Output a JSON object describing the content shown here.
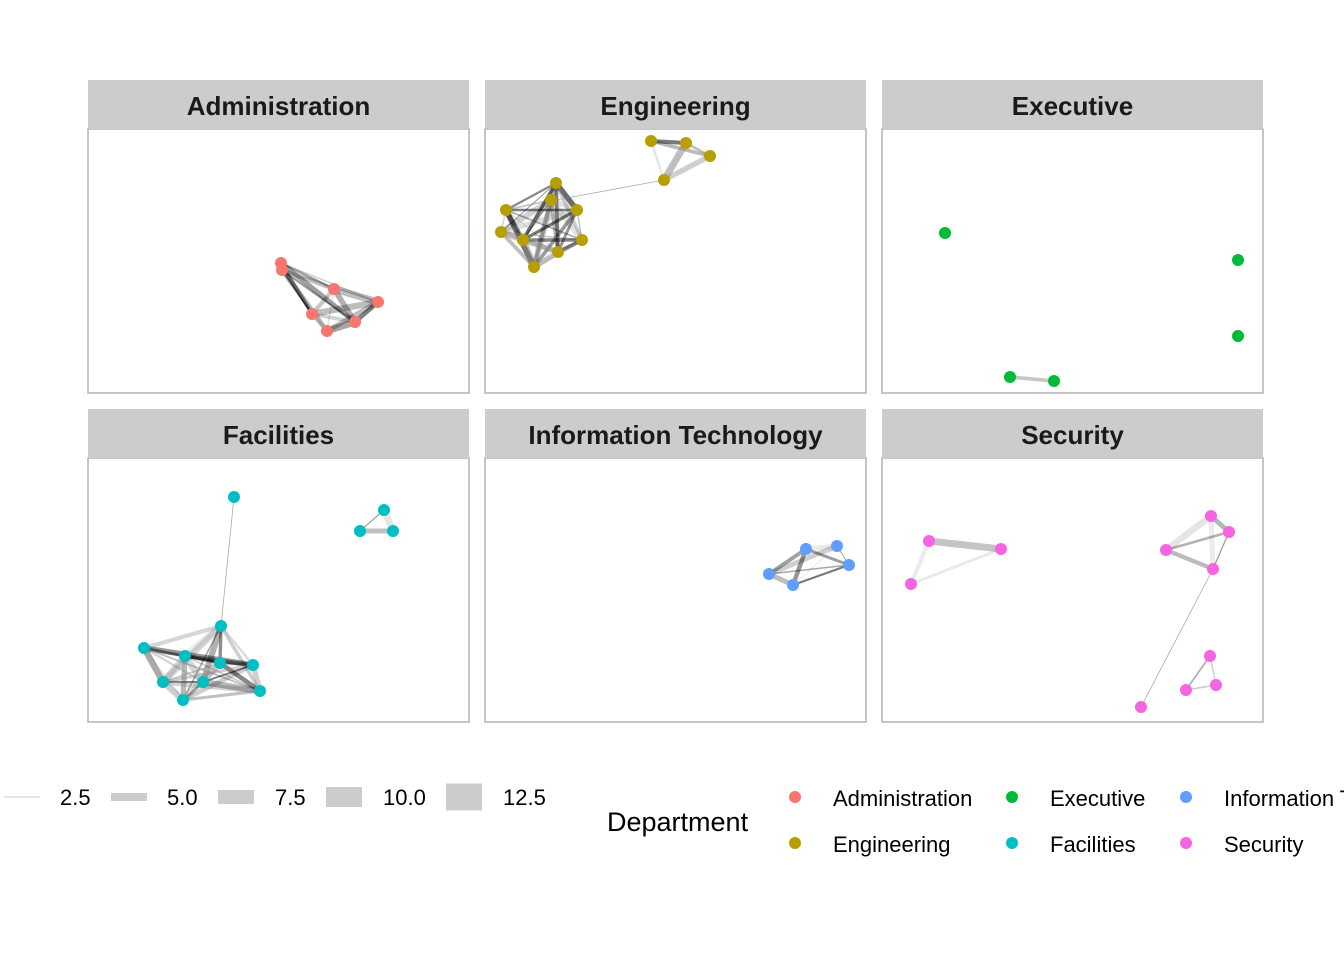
{
  "chart_data": {
    "type": "network",
    "facets": [
      "Administration",
      "Engineering",
      "Executive",
      "Facilities",
      "Information Technology",
      "Security"
    ],
    "legend_width": {
      "entries": [
        "2.5",
        "5.0",
        "7.5",
        "10.0",
        "12.5"
      ],
      "values": [
        2.5,
        5.0,
        7.5,
        10.0,
        12.5
      ],
      "placement": "bottom"
    },
    "legend_color": {
      "title": "Department",
      "placement": "bottom",
      "entries": [
        {
          "label": "Administration",
          "color": "#F8766D"
        },
        {
          "label": "Engineering",
          "color": "#B79F00"
        },
        {
          "label": "Executive",
          "color": "#00BA38"
        },
        {
          "label": "Facilities",
          "color": "#00BFC4"
        },
        {
          "label": "Information Technology",
          "color": "#619CFF"
        },
        {
          "label": "Security",
          "color": "#F564E3"
        }
      ]
    },
    "node_counts": {
      "Administration": 7,
      "Engineering": 13,
      "Executive": 5,
      "Facilities": 13,
      "Information Technology": 5,
      "Security": 11
    },
    "strip_color": "#CCCCCC",
    "edge_color": "#000000"
  }
}
